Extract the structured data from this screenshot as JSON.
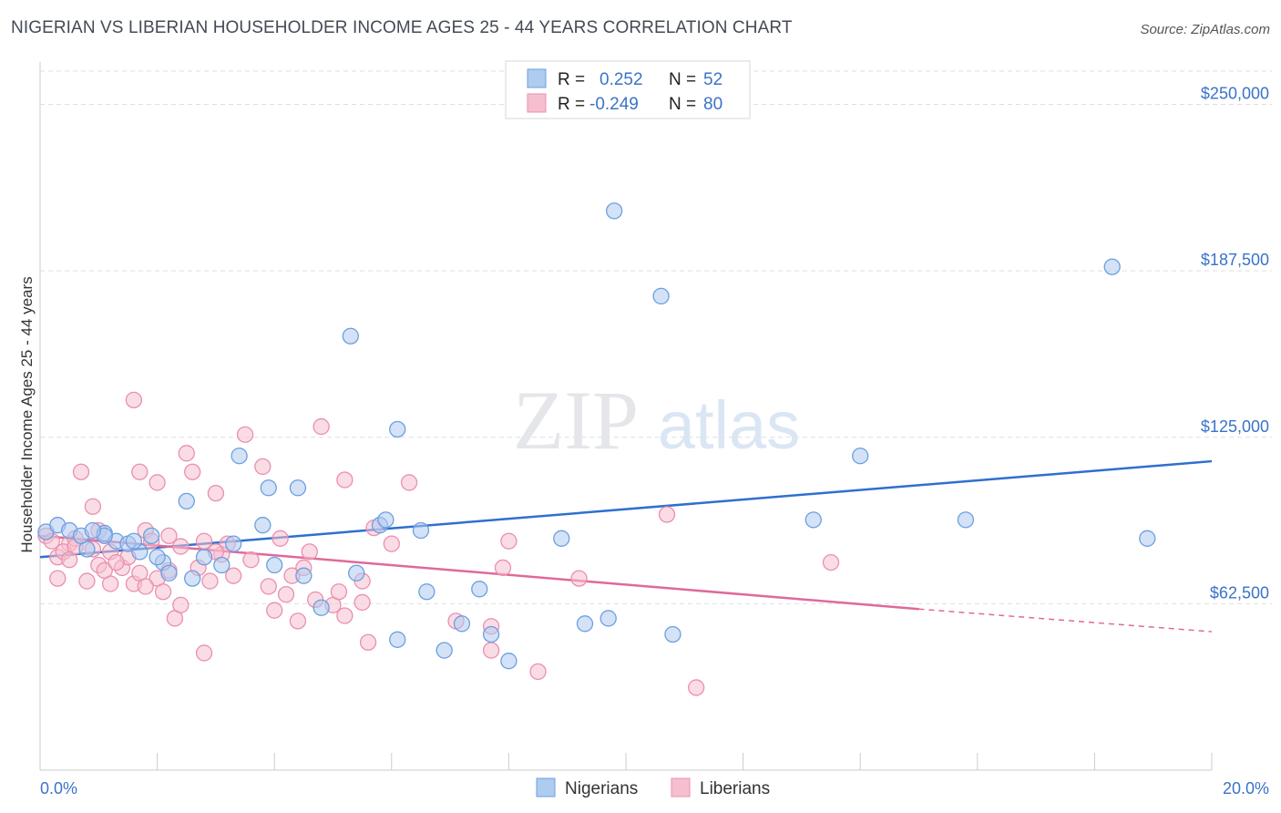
{
  "title": "NIGERIAN VS LIBERIAN HOUSEHOLDER INCOME AGES 25 - 44 YEARS CORRELATION CHART",
  "source": "Source: ZipAtlas.com",
  "watermark": {
    "zip": "ZIP",
    "atlas": "atlas"
  },
  "colors": {
    "nigerian_fill": "#aecbf0",
    "nigerian_stroke": "#6c9fe0",
    "nigerian_line": "#2f6fd0",
    "liberian_fill": "#f6bfd0",
    "liberian_stroke": "#eb8fae",
    "liberian_line": "#e0699a",
    "axis_text": "#3b73c8",
    "grid": "#dcdfe5"
  },
  "legend": {
    "rows": [
      {
        "r_label": "R =",
        "r_value": "0.252",
        "n_label": "N =",
        "n_value": "52"
      },
      {
        "r_label": "R =",
        "r_value": "-0.249",
        "n_label": "N =",
        "n_value": "80"
      }
    ]
  },
  "bottom_legend": [
    "Nigerians",
    "Liberians"
  ],
  "chart_data": {
    "type": "scatter",
    "title": "NIGERIAN VS LIBERIAN HOUSEHOLDER INCOME AGES 25 - 44 YEARS CORRELATION CHART",
    "xlabel": "",
    "ylabel": "Householder Income Ages 25 - 44 years",
    "xlim": [
      0,
      20
    ],
    "ylim": [
      0,
      262500
    ],
    "x_tick_labels": [
      "0.0%",
      "20.0%"
    ],
    "y_ticks": [
      62500,
      125000,
      187500,
      250000
    ],
    "y_tick_labels": [
      "$62,500",
      "$125,000",
      "$187,500",
      "$250,000"
    ],
    "grid": true,
    "legend_position": "top-center",
    "series": [
      {
        "name": "Nigerians",
        "points": [
          [
            0.1,
            89500
          ],
          [
            0.3,
            92000
          ],
          [
            0.5,
            90000
          ],
          [
            0.8,
            83000
          ],
          [
            0.7,
            88000
          ],
          [
            1.1,
            89000
          ],
          [
            1.3,
            86000
          ],
          [
            1.5,
            85000
          ],
          [
            1.7,
            82000
          ],
          [
            2.1,
            78000
          ],
          [
            2.5,
            101000
          ],
          [
            2.6,
            72000
          ],
          [
            2.8,
            80000
          ],
          [
            3.4,
            118000
          ],
          [
            3.9,
            106000
          ],
          [
            4.4,
            106000
          ],
          [
            4.8,
            61000
          ],
          [
            5.3,
            163000
          ],
          [
            5.4,
            74000
          ],
          [
            5.8,
            92000
          ],
          [
            6.1,
            49000
          ],
          [
            6.1,
            128000
          ],
          [
            6.6,
            67000
          ],
          [
            6.9,
            45000
          ],
          [
            7.2,
            55000
          ],
          [
            7.5,
            68000
          ],
          [
            7.7,
            51000
          ],
          [
            8.0,
            41000
          ],
          [
            8.9,
            87000
          ],
          [
            9.3,
            55000
          ],
          [
            9.7,
            57000
          ],
          [
            9.8,
            210000
          ],
          [
            10.6,
            178000
          ],
          [
            10.8,
            51000
          ],
          [
            13.2,
            94000
          ],
          [
            14.0,
            118000
          ],
          [
            15.8,
            94000
          ],
          [
            18.3,
            189000
          ],
          [
            18.9,
            87000
          ],
          [
            1.6,
            86000
          ],
          [
            3.1,
            77000
          ],
          [
            3.8,
            92000
          ],
          [
            4.0,
            77000
          ],
          [
            4.5,
            73000
          ],
          [
            5.9,
            94000
          ],
          [
            6.5,
            90000
          ],
          [
            2.0,
            80000
          ],
          [
            1.1,
            88000
          ],
          [
            2.2,
            74000
          ],
          [
            1.9,
            88000
          ],
          [
            3.3,
            85000
          ],
          [
            0.9,
            90000
          ]
        ]
      },
      {
        "name": "Liberians",
        "points": [
          [
            0.1,
            88000
          ],
          [
            0.3,
            80000
          ],
          [
            0.3,
            72000
          ],
          [
            0.5,
            85000
          ],
          [
            0.6,
            87000
          ],
          [
            0.7,
            112000
          ],
          [
            0.8,
            71000
          ],
          [
            0.9,
            99000
          ],
          [
            1.0,
            77000
          ],
          [
            1.2,
            70000
          ],
          [
            1.2,
            82000
          ],
          [
            1.4,
            76000
          ],
          [
            1.5,
            80000
          ],
          [
            1.6,
            70000
          ],
          [
            1.6,
            139000
          ],
          [
            1.7,
            112000
          ],
          [
            1.7,
            74000
          ],
          [
            1.8,
            90000
          ],
          [
            1.9,
            86000
          ],
          [
            2.0,
            72000
          ],
          [
            2.0,
            108000
          ],
          [
            2.1,
            67000
          ],
          [
            2.2,
            75000
          ],
          [
            2.3,
            57000
          ],
          [
            2.4,
            62000
          ],
          [
            2.5,
            119000
          ],
          [
            2.6,
            112000
          ],
          [
            2.7,
            76000
          ],
          [
            2.8,
            44000
          ],
          [
            2.9,
            71000
          ],
          [
            3.0,
            104000
          ],
          [
            3.1,
            81000
          ],
          [
            3.2,
            85000
          ],
          [
            3.5,
            126000
          ],
          [
            3.6,
            79000
          ],
          [
            3.8,
            114000
          ],
          [
            4.0,
            60000
          ],
          [
            4.1,
            87000
          ],
          [
            4.2,
            66000
          ],
          [
            4.3,
            73000
          ],
          [
            4.4,
            56000
          ],
          [
            4.6,
            82000
          ],
          [
            4.7,
            64000
          ],
          [
            4.8,
            129000
          ],
          [
            5.0,
            62000
          ],
          [
            5.2,
            109000
          ],
          [
            5.2,
            58000
          ],
          [
            5.5,
            63000
          ],
          [
            5.5,
            71000
          ],
          [
            5.6,
            48000
          ],
          [
            5.7,
            91000
          ],
          [
            6.3,
            108000
          ],
          [
            7.1,
            56000
          ],
          [
            7.7,
            45000
          ],
          [
            7.7,
            54000
          ],
          [
            7.9,
            76000
          ],
          [
            8.0,
            86000
          ],
          [
            8.5,
            37000
          ],
          [
            9.2,
            72000
          ],
          [
            10.7,
            96000
          ],
          [
            11.2,
            31000
          ],
          [
            13.5,
            78000
          ],
          [
            0.2,
            86000
          ],
          [
            0.4,
            82000
          ],
          [
            0.6,
            84000
          ],
          [
            0.9,
            83000
          ],
          [
            1.1,
            75000
          ],
          [
            1.3,
            78000
          ],
          [
            2.2,
            88000
          ],
          [
            2.4,
            84000
          ],
          [
            3.3,
            73000
          ],
          [
            3.9,
            69000
          ],
          [
            4.5,
            76000
          ],
          [
            5.1,
            67000
          ],
          [
            2.8,
            86000
          ],
          [
            6.0,
            85000
          ],
          [
            1.0,
            90000
          ],
          [
            0.5,
            79000
          ],
          [
            1.8,
            69000
          ],
          [
            3.0,
            82000
          ]
        ]
      }
    ],
    "trend_lines": [
      {
        "series": "Nigerians",
        "x": [
          0,
          20
        ],
        "y": [
          80000,
          116000
        ]
      },
      {
        "series": "Liberians",
        "x": [
          0,
          15
        ],
        "y": [
          88000,
          60500
        ],
        "dashed_extension_to": [
          20,
          52000
        ]
      }
    ]
  }
}
